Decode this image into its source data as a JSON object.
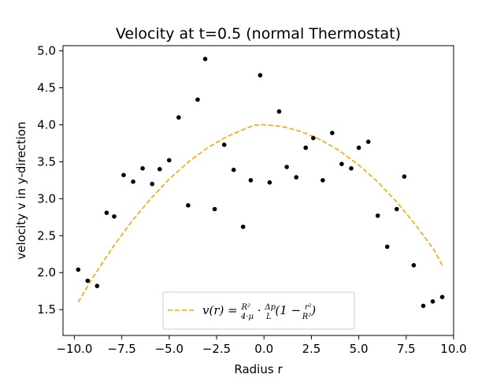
{
  "chart_data": {
    "type": "scatter",
    "title": "Velocity at t=0.5 (normal Thermostat)",
    "xlabel": "Radius r",
    "ylabel": "velocity v in y-direction",
    "xlim": [
      -10.6,
      10.0
    ],
    "ylim": [
      1.15,
      5.07
    ],
    "xticks": [
      -10.0,
      -7.5,
      -5.0,
      -2.5,
      0.0,
      2.5,
      5.0,
      7.5,
      10.0
    ],
    "xtick_labels": [
      "−10.0",
      "−7.5",
      "−5.0",
      "−2.5",
      "0.0",
      "2.5",
      "5.0",
      "7.5",
      "10.0"
    ],
    "yticks": [
      1.5,
      2.0,
      2.5,
      3.0,
      3.5,
      4.0,
      4.5,
      5.0
    ],
    "ytick_labels": [
      "1.5",
      "2.0",
      "2.5",
      "3.0",
      "3.5",
      "4.0",
      "4.5",
      "5.0"
    ],
    "grid": false,
    "legend_position": "bottom-center",
    "series": [
      {
        "type": "scatter",
        "color": "#000000",
        "x": [
          -9.8,
          -9.3,
          -8.8,
          -8.3,
          -7.9,
          -7.4,
          -6.9,
          -6.4,
          -5.9,
          -5.5,
          -5.0,
          -4.5,
          -4.0,
          -3.5,
          -3.1,
          -2.6,
          -2.1,
          -1.6,
          -1.1,
          -0.7,
          -0.2,
          0.3,
          0.8,
          1.2,
          1.7,
          2.2,
          2.6,
          3.1,
          3.6,
          4.1,
          4.6,
          5.0,
          5.5,
          6.0,
          6.5,
          7.0,
          7.4,
          7.9,
          8.4,
          8.9,
          9.4
        ],
        "y": [
          2.04,
          1.89,
          1.82,
          2.81,
          2.76,
          3.32,
          3.23,
          3.41,
          3.2,
          3.4,
          3.52,
          4.1,
          2.91,
          4.34,
          4.89,
          2.86,
          3.73,
          3.39,
          2.62,
          3.25,
          4.67,
          3.22,
          4.18,
          3.43,
          3.29,
          3.69,
          3.82,
          3.25,
          3.89,
          3.47,
          3.41,
          3.69,
          3.77,
          2.77,
          2.35,
          2.86,
          3.3,
          2.1,
          1.55,
          1.61,
          1.67
        ]
      },
      {
        "type": "line",
        "name": "v(r) = R²/(4·μ) · Δp/L (1 − r²/R²)",
        "color": "#ffa500",
        "linestyle": "dashed",
        "x": [
          -9.8,
          -9.0,
          -8.0,
          -7.0,
          -6.0,
          -5.0,
          -4.0,
          -3.0,
          -2.0,
          -1.0,
          -0.5,
          0.0,
          1.0,
          2.0,
          3.0,
          4.0,
          5.0,
          6.0,
          7.0,
          8.0,
          9.0,
          9.4
        ],
        "y": [
          1.6,
          1.945,
          2.335,
          2.685,
          2.995,
          3.265,
          3.495,
          3.685,
          3.835,
          3.945,
          3.995,
          4.0,
          3.975,
          3.905,
          3.795,
          3.645,
          3.455,
          3.225,
          2.955,
          2.645,
          2.295,
          2.095
        ]
      }
    ],
    "legend": {
      "label": "v(r) = R²/(4·μ) · Δp/L (1 − r²/R²)"
    }
  }
}
